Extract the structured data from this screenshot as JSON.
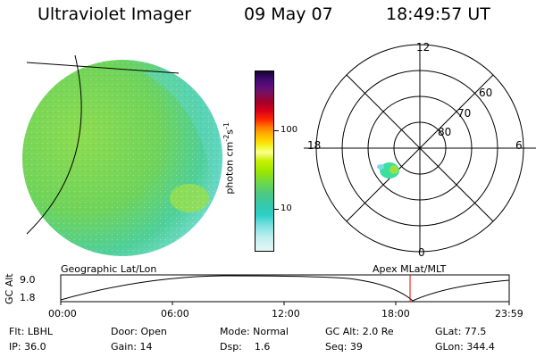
{
  "header": {
    "title": "Ultraviolet Imager",
    "date": "09 May 07",
    "time": "18:49:57 UT"
  },
  "colorbar": {
    "label": "photon cm",
    "unit_sup1": "-2",
    "unit_s": "s",
    "unit_sup2": "-1",
    "ticks": [
      "100",
      "10"
    ]
  },
  "polar": {
    "labels": {
      "top": "12",
      "left": "18",
      "right": "6",
      "bottom": "0"
    },
    "rings": [
      "60",
      "70",
      "80"
    ]
  },
  "trajectory": {
    "left_title": "Geographic Lat/Lon",
    "right_title": "Apex MLat/MLT",
    "ylabel": "GC Alt",
    "y_ticks": [
      "9.0",
      "1.8"
    ],
    "x_ticks": [
      "00:00",
      "06:00",
      "12:00",
      "18:00",
      "23:59"
    ],
    "marker_time": "18:50"
  },
  "footer": {
    "row1": [
      "Flt: LBHL",
      "Door: Open",
      "Mode: Normal",
      "GC Alt: 2.0 Re",
      "GLat:  77.5"
    ],
    "row2": [
      "IP: 36.0",
      "Gain: 14",
      "Dsp:    1.6",
      "Seq: 39",
      "GLon: 344.4"
    ]
  },
  "colors": {
    "marker": "#ff0000",
    "globe_green": "#7ed957",
    "globe_cyan": "#58d8b8",
    "oval": "#2fe08a"
  }
}
